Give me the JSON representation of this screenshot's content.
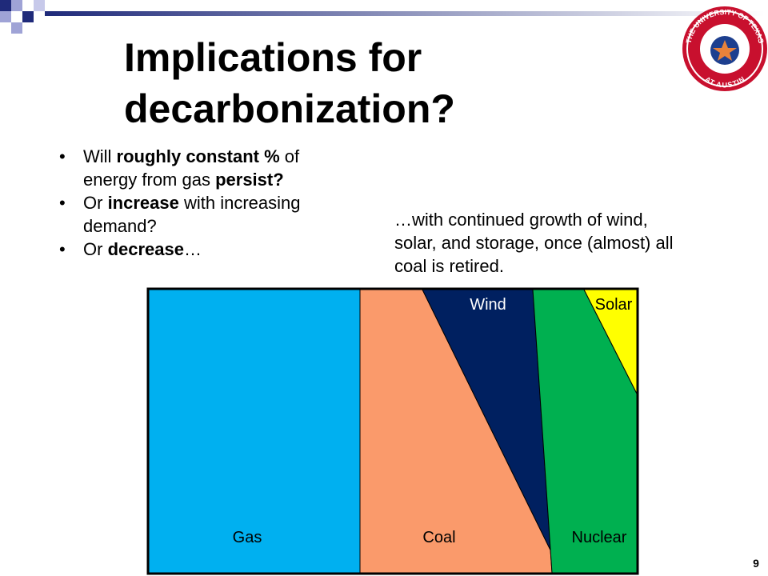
{
  "title": "Implications for decarbonization?",
  "bullets": [
    [
      {
        "text": "Will "
      },
      {
        "text": "roughly constant %",
        "bold": true
      },
      {
        "text": " of energy from gas "
      },
      {
        "text": "persist?",
        "bold": true
      }
    ],
    [
      {
        "text": "Or "
      },
      {
        "text": "increase",
        "bold": true
      },
      {
        "text": " with increasing demand?"
      }
    ],
    [
      {
        "text": "Or "
      },
      {
        "text": "decrease",
        "bold": true
      },
      {
        "text": "…"
      }
    ]
  ],
  "note": "…with continued growth of wind, solar, and storage, once (almost) all coal is retired.",
  "diagram": {
    "labels": {
      "gas": "Gas",
      "coal": "Coal",
      "wind": "Wind",
      "nuclear": "Nuclear",
      "solar": "Solar"
    }
  },
  "logo_text": {
    "top": "THE UNIVERSITY OF TEXAS",
    "bottom": "AT AUSTIN"
  },
  "page_number": "9"
}
